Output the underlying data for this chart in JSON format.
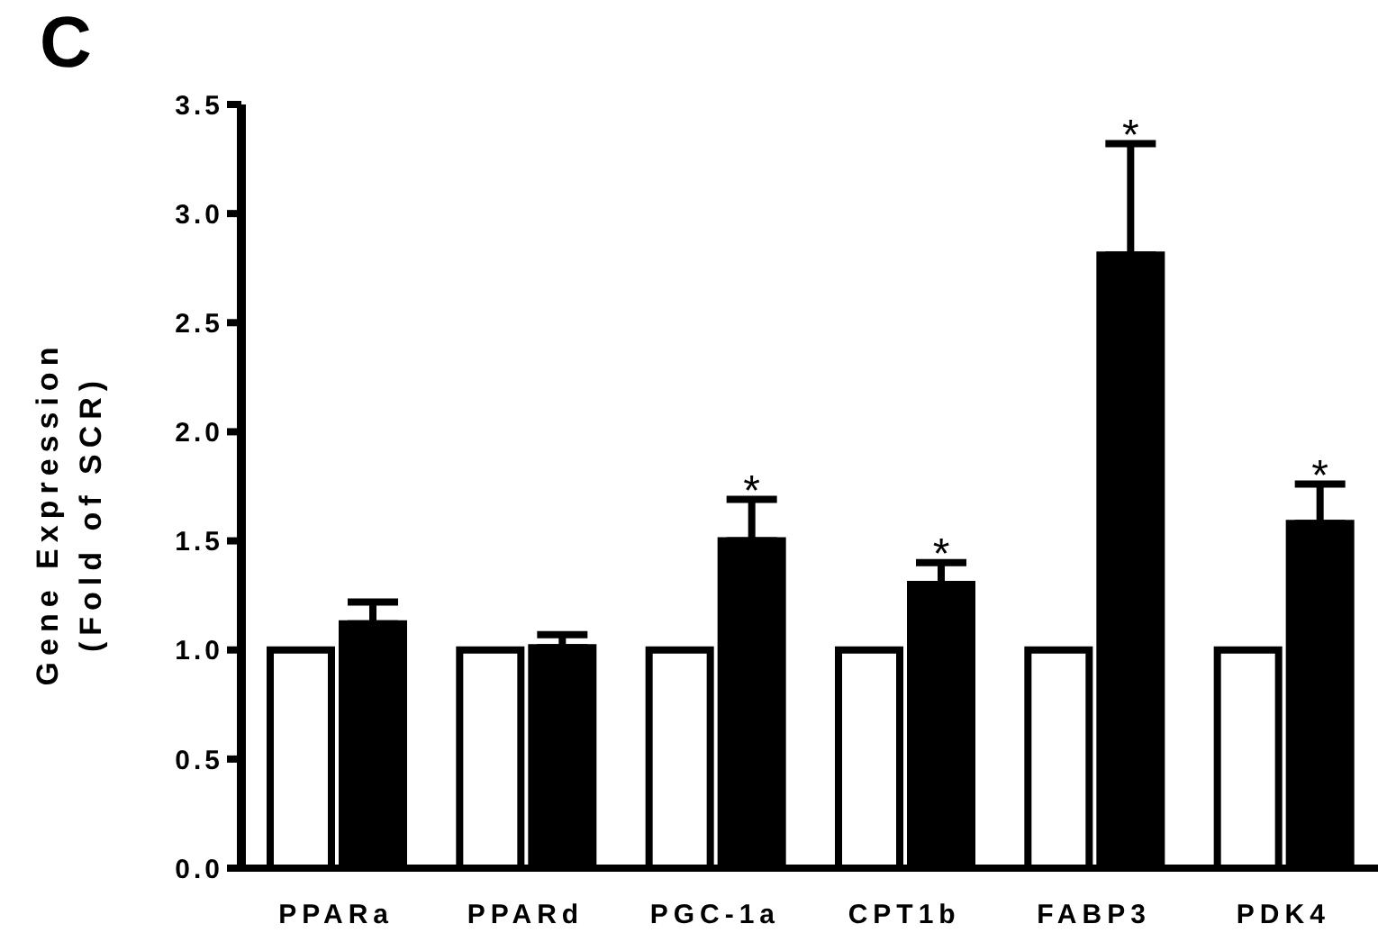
{
  "chart_data": {
    "type": "bar",
    "title": "C",
    "ylabel": "Gene Expression\n(Fold of SCR)",
    "categories": [
      "PPARa",
      "PPARd",
      "PGC-1a",
      "CPT1b",
      "FABP3",
      "PDK4"
    ],
    "series": [
      {
        "color": "#ffffff",
        "values": [
          1,
          1,
          1,
          1,
          1,
          1
        ]
      },
      {
        "color": "#000000",
        "values": [
          1.12,
          1.01,
          1.5,
          1.3,
          2.81,
          1.58
        ],
        "errors": [
          [
            1.12,
            1.22
          ],
          [
            1.01,
            1.07
          ],
          [
            1.5,
            1.69
          ],
          [
            1.3,
            1.4
          ],
          [
            2.81,
            3.32
          ],
          [
            1.58,
            1.76
          ]
        ],
        "value_labels": [
          null,
          null,
          "*",
          "*",
          "*",
          "*"
        ]
      }
    ],
    "ylim": [
      0,
      3.5
    ],
    "yticks": [
      {
        "value": 0,
        "label": "0.0"
      },
      0.5,
      {
        "value": 1,
        "label": "1.0"
      },
      1.5,
      {
        "value": 2,
        "label": "2.0"
      },
      2.5,
      {
        "value": 3,
        "label": "3.0"
      },
      3.5
    ],
    "grid": false,
    "legend": false
  }
}
